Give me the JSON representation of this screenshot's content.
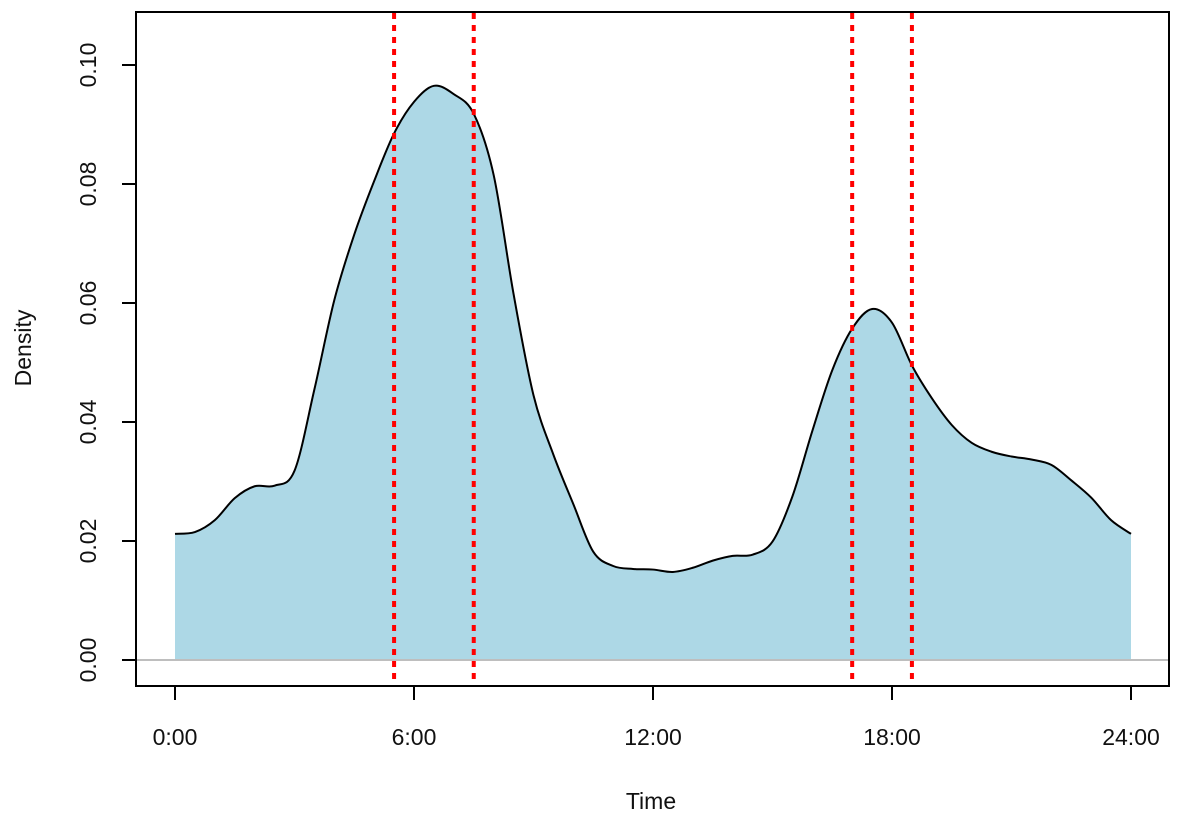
{
  "chart_data": {
    "type": "area",
    "title": "",
    "xlabel": "Time",
    "ylabel": "Density",
    "xlim": [
      0,
      24
    ],
    "ylim": [
      0,
      0.1
    ],
    "x_ticks": [
      0,
      6,
      12,
      18,
      24
    ],
    "x_tick_labels": [
      "0:00",
      "6:00",
      "12:00",
      "18:00",
      "24:00"
    ],
    "y_ticks": [
      0,
      0.02,
      0.04,
      0.06,
      0.08,
      0.1
    ],
    "y_tick_labels": [
      "0.00",
      "0.02",
      "0.04",
      "0.06",
      "0.08",
      "0.10"
    ],
    "grid": false,
    "colors": {
      "fill": "#add8e6",
      "line": "#000000",
      "reference": "#ff0000",
      "baseline": "#bebebe"
    },
    "series": [
      {
        "x": [
          0,
          0.5,
          1,
          1.5,
          2,
          2.5,
          3,
          3.5,
          4,
          4.5,
          5,
          5.5,
          6,
          6.5,
          7,
          7.5,
          8,
          8.5,
          9,
          9.5,
          10,
          10.5,
          11,
          11.5,
          12,
          12.5,
          13,
          13.5,
          14,
          14.5,
          15,
          15.5,
          16,
          16.5,
          17,
          17.5,
          18,
          18.5,
          19,
          19.5,
          20,
          20.5,
          21,
          21.5,
          22,
          22.5,
          23,
          23.5,
          24
        ],
        "y": [
          0.0212,
          0.0215,
          0.0235,
          0.0272,
          0.0292,
          0.0293,
          0.0318,
          0.0455,
          0.0605,
          0.0715,
          0.0805,
          0.0885,
          0.0938,
          0.0965,
          0.0951,
          0.0918,
          0.0815,
          0.0615,
          0.0445,
          0.0345,
          0.0262,
          0.0182,
          0.0158,
          0.0153,
          0.0152,
          0.0148,
          0.0155,
          0.0167,
          0.0175,
          0.0177,
          0.0199,
          0.0275,
          0.0385,
          0.0487,
          0.0557,
          0.059,
          0.0567,
          0.0495,
          0.044,
          0.0395,
          0.0365,
          0.035,
          0.0342,
          0.0337,
          0.0328,
          0.0302,
          0.0273,
          0.0235,
          0.0212
        ]
      }
    ],
    "reference_lines_x": [
      5.5,
      7.5,
      17,
      18.5
    ]
  }
}
